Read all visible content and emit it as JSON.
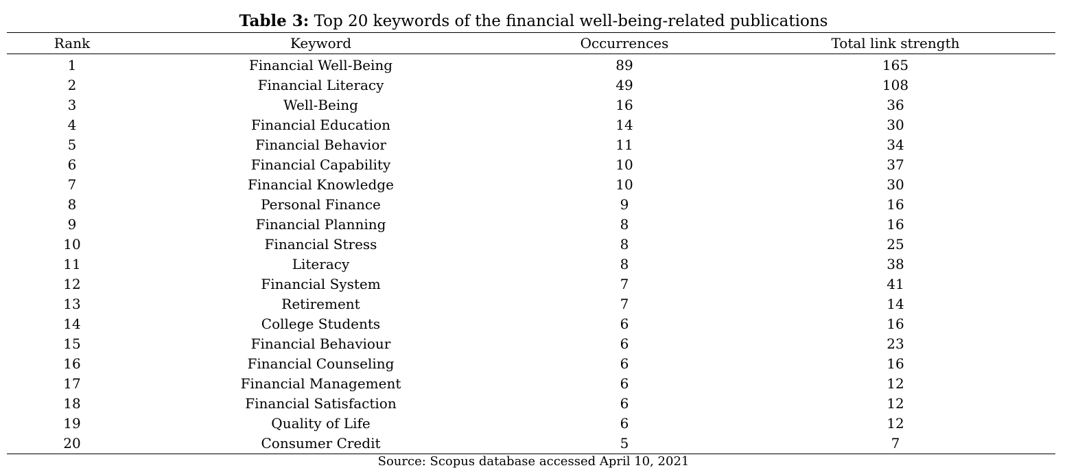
{
  "caption": {
    "lead": "Table 3:",
    "text": "Top 20 keywords of the financial well-being-related publications"
  },
  "table": {
    "columns": [
      "Rank",
      "Keyword",
      "Occurrences",
      "Total link strength"
    ],
    "rows": [
      {
        "rank": "1",
        "keyword": "Financial Well-Being",
        "occurrences": "89",
        "total_link_strength": "165"
      },
      {
        "rank": "2",
        "keyword": "Financial Literacy",
        "occurrences": "49",
        "total_link_strength": "108"
      },
      {
        "rank": "3",
        "keyword": "Well-Being",
        "occurrences": "16",
        "total_link_strength": "36"
      },
      {
        "rank": "4",
        "keyword": "Financial Education",
        "occurrences": "14",
        "total_link_strength": "30"
      },
      {
        "rank": "5",
        "keyword": "Financial Behavior",
        "occurrences": "11",
        "total_link_strength": "34"
      },
      {
        "rank": "6",
        "keyword": "Financial Capability",
        "occurrences": "10",
        "total_link_strength": "37"
      },
      {
        "rank": "7",
        "keyword": "Financial Knowledge",
        "occurrences": "10",
        "total_link_strength": "30"
      },
      {
        "rank": "8",
        "keyword": "Personal Finance",
        "occurrences": "9",
        "total_link_strength": "16"
      },
      {
        "rank": "9",
        "keyword": "Financial Planning",
        "occurrences": "8",
        "total_link_strength": "16"
      },
      {
        "rank": "10",
        "keyword": "Financial Stress",
        "occurrences": "8",
        "total_link_strength": "25"
      },
      {
        "rank": "11",
        "keyword": "Literacy",
        "occurrences": "8",
        "total_link_strength": "38"
      },
      {
        "rank": "12",
        "keyword": "Financial System",
        "occurrences": "7",
        "total_link_strength": "41"
      },
      {
        "rank": "13",
        "keyword": "Retirement",
        "occurrences": "7",
        "total_link_strength": "14"
      },
      {
        "rank": "14",
        "keyword": "College Students",
        "occurrences": "6",
        "total_link_strength": "16"
      },
      {
        "rank": "15",
        "keyword": "Financial Behaviour",
        "occurrences": "6",
        "total_link_strength": "23"
      },
      {
        "rank": "16",
        "keyword": "Financial Counseling",
        "occurrences": "6",
        "total_link_strength": "16"
      },
      {
        "rank": "17",
        "keyword": "Financial Management",
        "occurrences": "6",
        "total_link_strength": "12"
      },
      {
        "rank": "18",
        "keyword": "Financial Satisfaction",
        "occurrences": "6",
        "total_link_strength": "12"
      },
      {
        "rank": "19",
        "keyword": "Quality of Life",
        "occurrences": "6",
        "total_link_strength": "12"
      },
      {
        "rank": "20",
        "keyword": "Consumer Credit",
        "occurrences": "5",
        "total_link_strength": "7"
      }
    ]
  },
  "source": "Source: Scopus database accessed April 10, 2021"
}
